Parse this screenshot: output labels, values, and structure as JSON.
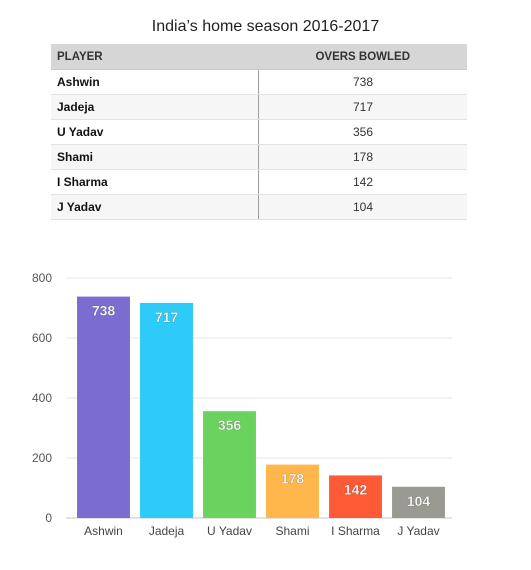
{
  "title": "India’s home season 2016-2017",
  "table": {
    "headers": [
      "PLAYER",
      "OVERS BOWLED"
    ],
    "rows": [
      [
        "Ashwin",
        "738"
      ],
      [
        "Jadeja",
        "717"
      ],
      [
        "U Yadav",
        "356"
      ],
      [
        "Shami",
        "178"
      ],
      [
        "I Sharma",
        "142"
      ],
      [
        "J Yadav",
        "104"
      ]
    ]
  },
  "chart_data": {
    "type": "bar",
    "categories": [
      "Ashwin",
      "Jadeja",
      "U Yadav",
      "Shami",
      "I Sharma",
      "J Yadav"
    ],
    "values": [
      738,
      717,
      356,
      178,
      142,
      104
    ],
    "colors": [
      "#7b6cd0",
      "#2ecbf8",
      "#69d35e",
      "#ffb64b",
      "#ff5a36",
      "#9a9a93"
    ],
    "ylim": [
      0,
      800
    ],
    "yticks": [
      0,
      200,
      400,
      600,
      800
    ],
    "grid": true,
    "data_labels": true
  }
}
